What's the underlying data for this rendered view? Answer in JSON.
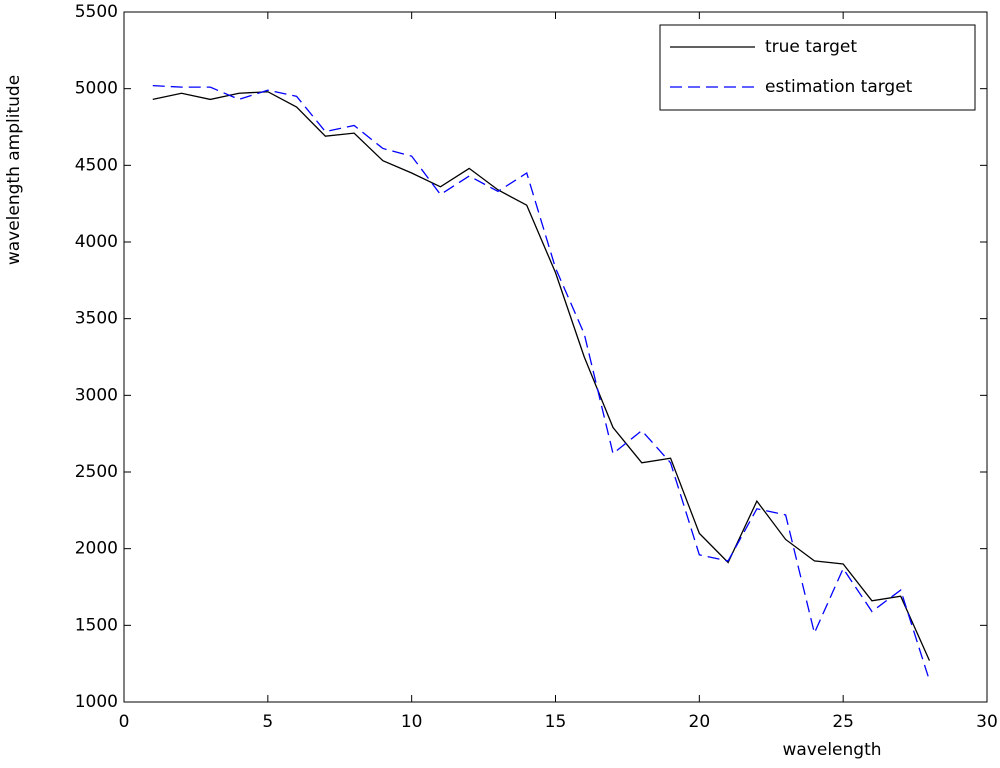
{
  "chart_data": {
    "type": "line",
    "x_label": "wavelength",
    "y_label": "wavelength amplitude",
    "axis_label_color": "#2b6a8c",
    "x": [
      1,
      2,
      3,
      4,
      5,
      6,
      7,
      8,
      9,
      10,
      11,
      12,
      13,
      14,
      15,
      16,
      17,
      18,
      19,
      20,
      21,
      22,
      23,
      24,
      25,
      26,
      27,
      28
    ],
    "series": [
      {
        "name": "true target",
        "color": "#000000",
        "dash": "none",
        "values": [
          4930,
          4970,
          4930,
          4970,
          4980,
          4880,
          4690,
          4710,
          4530,
          4450,
          4360,
          4480,
          4340,
          4240,
          3800,
          3250,
          2790,
          2560,
          2590,
          2100,
          1910,
          2310,
          2060,
          1920,
          1900,
          1660,
          1690,
          1270
        ]
      },
      {
        "name": "estimation target",
        "color": "#0000ff",
        "dash": "12 6",
        "values": [
          5020,
          5010,
          5010,
          4930,
          4990,
          4950,
          4720,
          4760,
          4610,
          4560,
          4310,
          4430,
          4330,
          4450,
          3830,
          3400,
          2620,
          2770,
          2560,
          1960,
          1920,
          2260,
          2220,
          1450,
          1870,
          1590,
          1730,
          1140
        ]
      }
    ],
    "xlim": [
      0,
      30
    ],
    "xticks": [
      0,
      5,
      10,
      15,
      20,
      25,
      30
    ],
    "ylim": [
      1000,
      5500
    ],
    "yticks": [
      1000,
      1500,
      2000,
      2500,
      3000,
      3500,
      4000,
      4500,
      5000,
      5500
    ],
    "legend": "top-right"
  }
}
